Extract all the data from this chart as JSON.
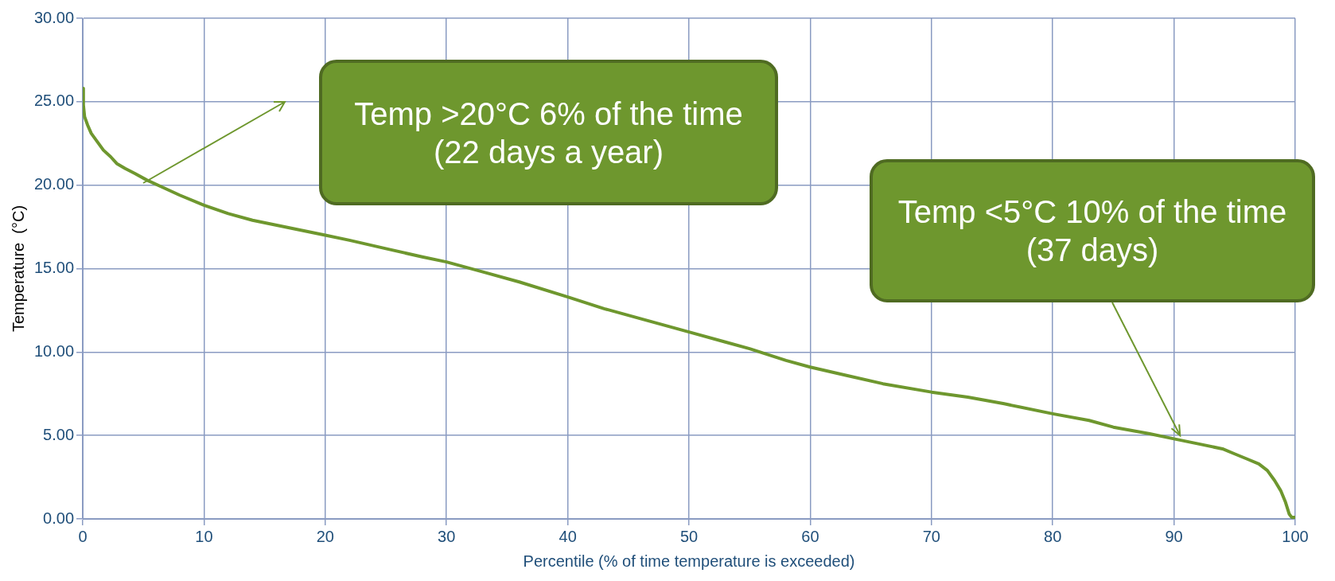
{
  "chart_data": {
    "type": "line",
    "xlabel": "Percentile (% of time temperature is exceeded)",
    "ylabel": "Temperature  (°C)",
    "x": [
      0,
      0.05,
      0.15,
      0.4,
      0.7,
      1.2,
      1.7,
      2.3,
      2.8,
      3.5,
      4.3,
      5.3,
      6.5,
      8,
      10,
      12,
      14,
      16,
      18,
      20,
      22,
      25,
      28,
      30,
      33,
      36,
      40,
      43,
      46,
      50,
      53,
      55,
      58,
      60,
      63,
      66,
      70,
      73,
      76,
      80,
      83,
      85,
      88,
      90,
      92,
      94,
      95,
      96,
      97,
      97.7,
      98.3,
      98.8,
      99.2,
      99.5,
      99.7,
      100
    ],
    "series": [
      {
        "color": "#6e972e",
        "values": [
          25.8,
          24.8,
          24.1,
          23.6,
          23.1,
          22.6,
          22.1,
          21.7,
          21.3,
          21.0,
          20.7,
          20.3,
          19.9,
          19.4,
          18.8,
          18.3,
          17.9,
          17.6,
          17.3,
          17.0,
          16.7,
          16.2,
          15.7,
          15.4,
          14.8,
          14.2,
          13.3,
          12.6,
          12.0,
          11.2,
          10.6,
          10.2,
          9.5,
          9.1,
          8.6,
          8.1,
          7.6,
          7.3,
          6.9,
          6.3,
          5.9,
          5.5,
          5.1,
          4.8,
          4.5,
          4.2,
          3.9,
          3.6,
          3.3,
          2.9,
          2.3,
          1.7,
          1.0,
          0.3,
          0.1,
          0.1
        ]
      }
    ],
    "xlim": [
      0,
      100
    ],
    "xticks": [
      0,
      10,
      20,
      30,
      40,
      50,
      60,
      70,
      80,
      90,
      100
    ],
    "ylim": [
      0,
      30
    ],
    "yticks": [
      {
        "value": 0,
        "label": "0.00"
      },
      {
        "value": 5,
        "label": "5.00"
      },
      {
        "value": 10,
        "label": "10.00"
      },
      {
        "value": 15,
        "label": "15.00"
      },
      {
        "value": 20,
        "label": "20.00"
      },
      {
        "value": 25,
        "label": "25.00"
      },
      {
        "value": 30,
        "label": "30.00"
      }
    ],
    "grid": true,
    "legend": false,
    "marker": "none",
    "line_style": "solid",
    "annotations": [
      "Temp >20°C 6% of the time (22 days a year)",
      {
        "text": "Temp <5°C 10% of the time (37 days)",
        "x": 90.5,
        "y": 5
      }
    ]
  }
}
